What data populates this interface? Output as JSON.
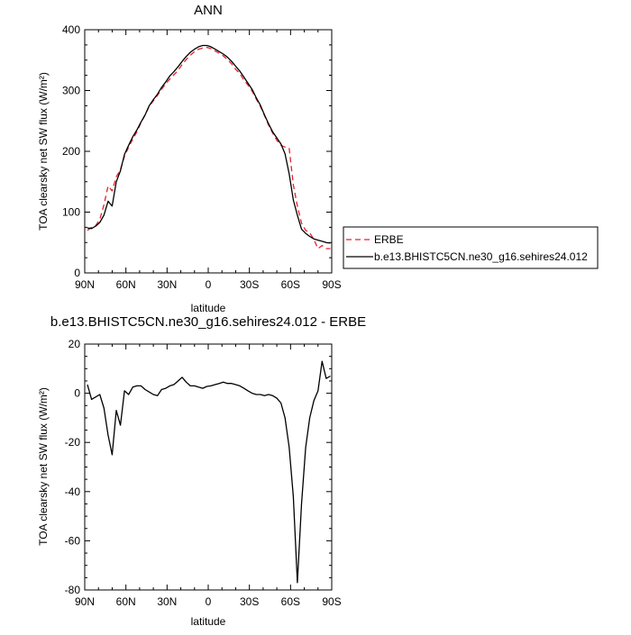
{
  "chart_data": [
    {
      "type": "line",
      "title": "ANN",
      "xlabel": "latitude",
      "ylabel": "TOA clearsky net SW flux (W/m²)",
      "xlim": [
        90,
        -90
      ],
      "ylim": [
        0,
        400
      ],
      "xticks": [
        "90N",
        "60N",
        "30N",
        "0",
        "30S",
        "60S",
        "90S"
      ],
      "yticks": [
        "0",
        "100",
        "200",
        "300",
        "400"
      ],
      "legend_position": "right",
      "series": [
        {
          "name": "ERBE",
          "color": "#e8202a",
          "dash": true,
          "x": [
            88,
            85,
            82,
            79,
            76,
            73,
            70,
            67,
            64,
            61,
            58,
            55,
            52,
            49,
            46,
            43,
            40,
            37,
            34,
            31,
            28,
            25,
            22,
            19,
            16,
            13,
            10,
            7,
            4,
            1,
            -2,
            -5,
            -8,
            -11,
            -14,
            -17,
            -20,
            -23,
            -26,
            -29,
            -32,
            -35,
            -38,
            -41,
            -44,
            -47,
            -50,
            -53,
            -56,
            -59,
            -62,
            -65,
            -68,
            -71,
            -74,
            -77,
            -80,
            -83,
            -86,
            -89
          ],
          "y": [
            70,
            75,
            78,
            88,
            112,
            143,
            135,
            158,
            170,
            192,
            207,
            220,
            232,
            247,
            260,
            274,
            283,
            292,
            302,
            311,
            319,
            326,
            333,
            343,
            351,
            358,
            364,
            368,
            370,
            371,
            369,
            365,
            361,
            357,
            351,
            344,
            335,
            328,
            317,
            309,
            299,
            286,
            274,
            259,
            243,
            230,
            218,
            210,
            207,
            205,
            145,
            110,
            82,
            70,
            66,
            55,
            40,
            45,
            40,
            40
          ]
        },
        {
          "name": "b.e13.BHISTC5CN.ne30_g16.sehires24.012",
          "color": "#000000",
          "dash": false,
          "x": [
            88,
            85,
            82,
            79,
            76,
            73,
            70,
            67,
            64,
            61,
            58,
            55,
            52,
            49,
            46,
            43,
            40,
            37,
            34,
            31,
            28,
            25,
            22,
            19,
            16,
            13,
            10,
            7,
            4,
            1,
            -2,
            -5,
            -8,
            -11,
            -14,
            -17,
            -20,
            -23,
            -26,
            -29,
            -32,
            -35,
            -38,
            -41,
            -44,
            -47,
            -50,
            -53,
            -56,
            -59,
            -62,
            -65,
            -68,
            -71,
            -74,
            -77,
            -80,
            -83,
            -86,
            -89
          ],
          "y": [
            74,
            73,
            77,
            83,
            95,
            118,
            110,
            150,
            168,
            195,
            210,
            224,
            235,
            248,
            260,
            275,
            285,
            294,
            305,
            314,
            324,
            331,
            339,
            348,
            356,
            363,
            368,
            372,
            374,
            374,
            372,
            368,
            364,
            360,
            355,
            348,
            340,
            332,
            322,
            312,
            302,
            288,
            276,
            260,
            245,
            232,
            222,
            212,
            196,
            163,
            120,
            95,
            72,
            65,
            60,
            56,
            54,
            52,
            50,
            49
          ]
        }
      ]
    },
    {
      "type": "line",
      "title": "b.e13.BHISTC5CN.ne30_g16.sehires24.012 - ERBE",
      "xlabel": "latitude",
      "ylabel": "TOA clearsky net SW flux (W/m²)",
      "xlim": [
        90,
        -90
      ],
      "ylim": [
        -80,
        20
      ],
      "xticks": [
        "90N",
        "60N",
        "30N",
        "0",
        "30S",
        "60S",
        "90S"
      ],
      "yticks": [
        "-80",
        "-60",
        "-40",
        "-20",
        "0",
        "20"
      ],
      "series": [
        {
          "name": "",
          "color": "#000000",
          "dash": false,
          "x": [
            88,
            85,
            82,
            79,
            76,
            73,
            70,
            67,
            64,
            61,
            58,
            55,
            52,
            49,
            46,
            43,
            40,
            37,
            34,
            31,
            28,
            25,
            22,
            19,
            16,
            13,
            10,
            7,
            4,
            1,
            -2,
            -5,
            -8,
            -11,
            -14,
            -17,
            -20,
            -23,
            -26,
            -29,
            -32,
            -35,
            -38,
            -41,
            -44,
            -47,
            -50,
            -53,
            -56,
            -59,
            -62,
            -65,
            -68,
            -71,
            -74,
            -77,
            -80,
            -83,
            -86,
            -89
          ],
          "y": [
            3.5,
            -2.5,
            -1.5,
            -0.5,
            -6,
            -17,
            -25,
            -7,
            -13,
            1,
            -0.5,
            2.5,
            3,
            3,
            1.5,
            0.5,
            -0.5,
            -1,
            1.5,
            2,
            3,
            3.5,
            5,
            6.5,
            4.5,
            3,
            3,
            2.5,
            2,
            2.8,
            3,
            3.5,
            4,
            4.5,
            4,
            4,
            3.5,
            3,
            2,
            1,
            0,
            -0.5,
            -0.5,
            -1,
            -0.5,
            -1,
            -2,
            -4,
            -10,
            -22,
            -42,
            -77,
            -45,
            -22,
            -10,
            -3,
            1,
            13,
            6,
            7
          ]
        }
      ]
    }
  ]
}
